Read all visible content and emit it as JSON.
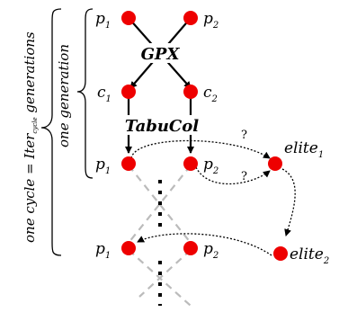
{
  "side_labels": {
    "cycle_prefix": "one cycle = Iter",
    "cycle_sub": "cycle",
    "cycle_suffix": " generations",
    "generation": "one generation"
  },
  "nodes": {
    "p1_top": {
      "base": "p",
      "sub": "1"
    },
    "p2_top": {
      "base": "p",
      "sub": "2"
    },
    "c1": {
      "base": "c",
      "sub": "1"
    },
    "c2": {
      "base": "c",
      "sub": "2"
    },
    "p1_mid": {
      "base": "p",
      "sub": "1"
    },
    "p2_mid": {
      "base": "p",
      "sub": "2"
    },
    "p1_bot": {
      "base": "p",
      "sub": "1"
    },
    "p2_bot": {
      "base": "p",
      "sub": "2"
    },
    "elite1": {
      "base": "elite",
      "sub": "1"
    },
    "elite2": {
      "base": "elite",
      "sub": "2"
    }
  },
  "operators": {
    "crossover": "GPX",
    "local_search": "TabuCol"
  },
  "question_marks": [
    "?",
    "?"
  ],
  "colors": {
    "node_fill": "#ee0000",
    "arrow": "#000000",
    "faded_line": "#bbbbbb"
  }
}
